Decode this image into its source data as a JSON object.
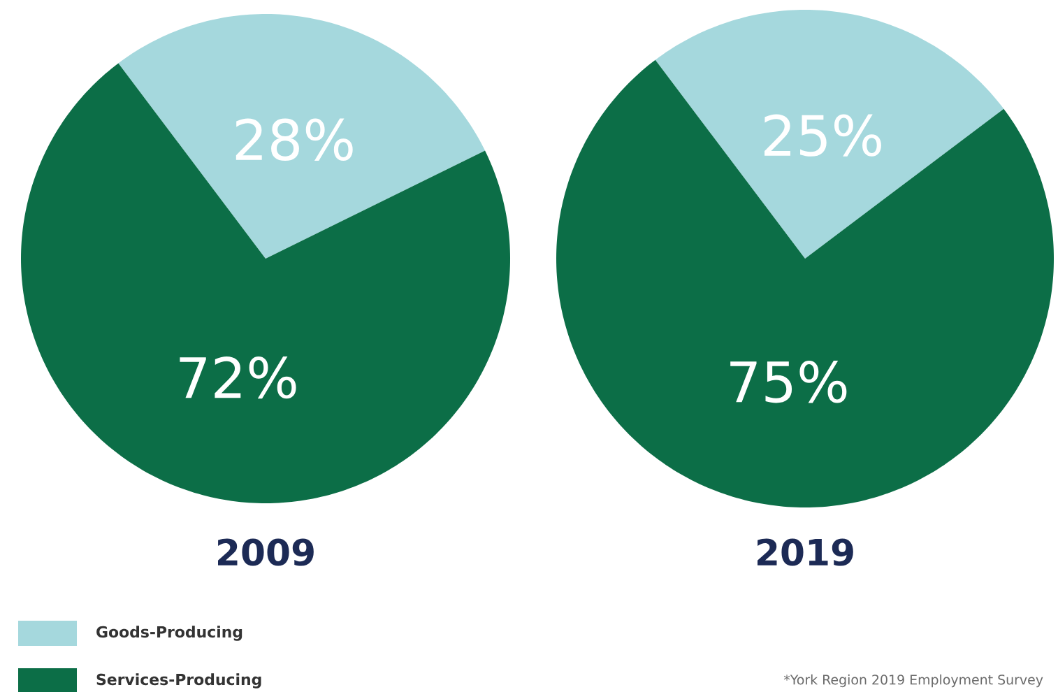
{
  "chart_data": [
    {
      "type": "pie",
      "title": "2009",
      "categories": [
        "Goods-Producing",
        "Services-Producing"
      ],
      "values": [
        28,
        72
      ],
      "colors": [
        "#a5d8dd",
        "#0c6e47"
      ],
      "value_labels": [
        "28%",
        "72%"
      ],
      "legend": "bottom left"
    },
    {
      "type": "pie",
      "title": "2019",
      "categories": [
        null,
        null
      ],
      "values": [
        25,
        75
      ],
      "colors": [
        "#a5d8dd",
        "#0c6e47"
      ],
      "value_labels": [
        "25%",
        "75%"
      ],
      "annotations": [
        "*York Region 2019 Employment Survey"
      ]
    }
  ]
}
